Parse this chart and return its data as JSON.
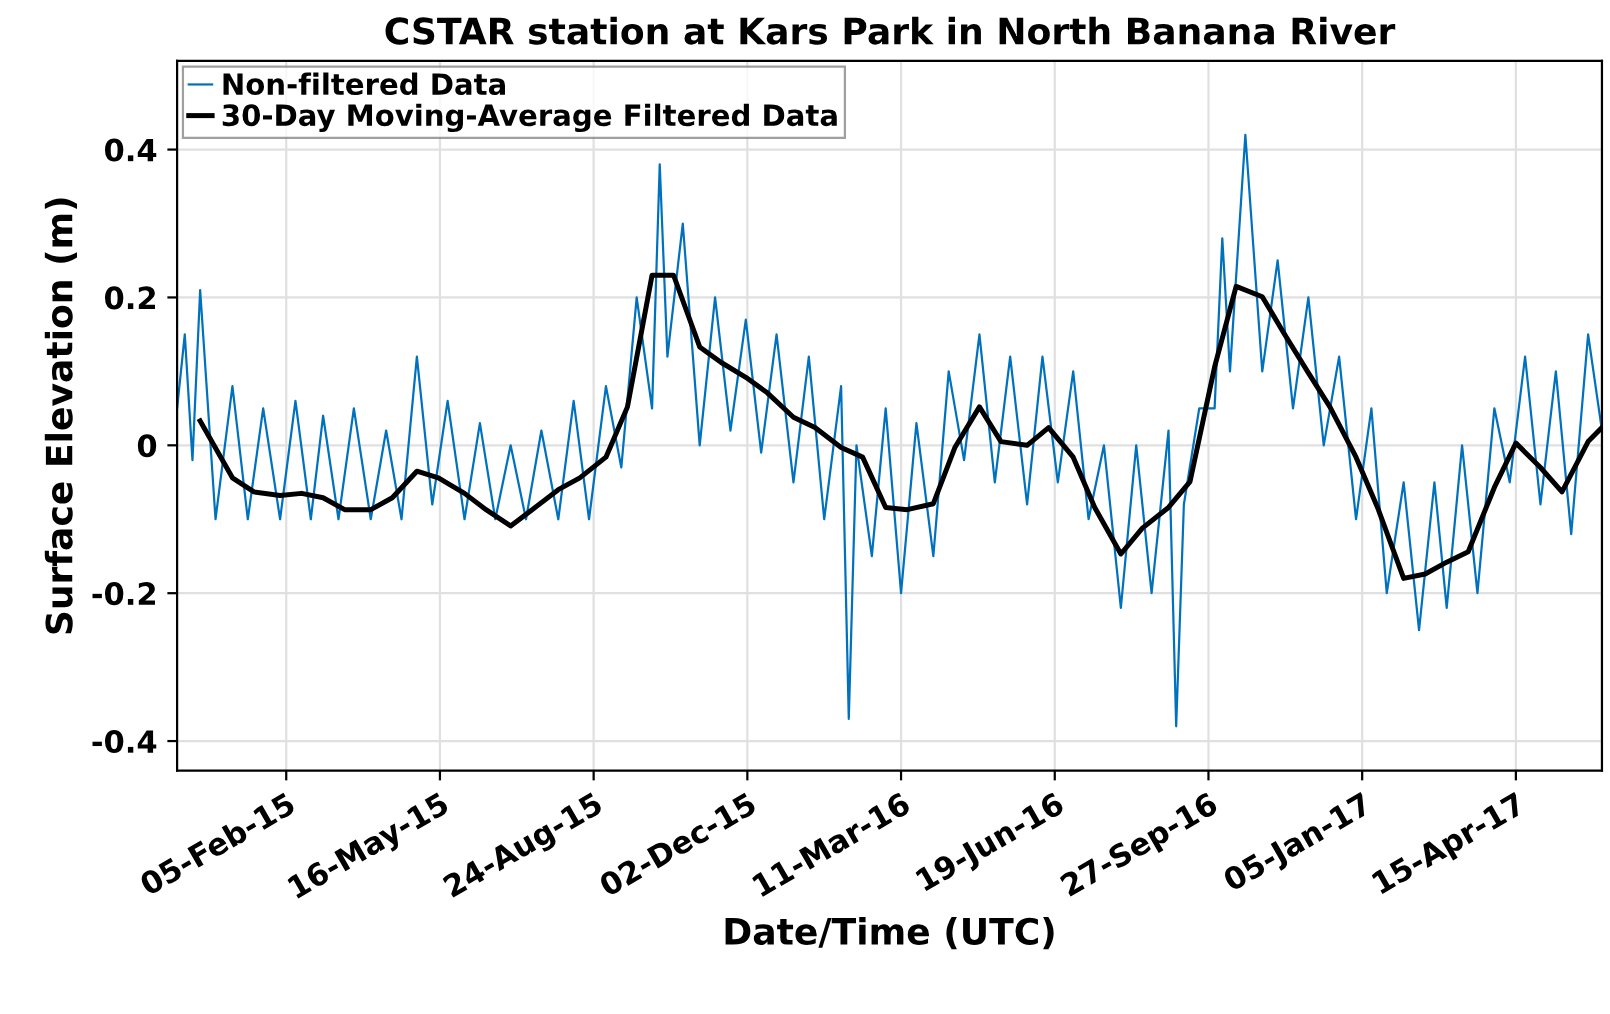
{
  "chart_data": {
    "type": "line",
    "title": "CSTAR station at Kars Park in North Banana River",
    "xlabel": "Date/Time (UTC)",
    "ylabel": "Surface Elevation (m)",
    "xlim": [
      "2014-11-26",
      "2017-06-10"
    ],
    "ylim": [
      -0.44,
      0.52
    ],
    "xticks": [
      {
        "value": "2015-02-05",
        "label": "05-Feb-15"
      },
      {
        "value": "2015-05-16",
        "label": "16-May-15"
      },
      {
        "value": "2015-08-24",
        "label": "24-Aug-15"
      },
      {
        "value": "2015-12-02",
        "label": "02-Dec-15"
      },
      {
        "value": "2016-03-11",
        "label": "11-Mar-16"
      },
      {
        "value": "2016-06-19",
        "label": "19-Jun-16"
      },
      {
        "value": "2016-09-27",
        "label": "27-Sep-16"
      },
      {
        "value": "2017-01-05",
        "label": "05-Jan-17"
      },
      {
        "value": "2017-04-15",
        "label": "15-Apr-17"
      }
    ],
    "yticks": [
      -0.4,
      -0.2,
      0,
      0.2,
      0.4
    ],
    "grid": true,
    "legend": "top left",
    "marker": "none",
    "line_style": "solid",
    "series": [
      {
        "name": "Non-filtered Data",
        "color": "#0072bd",
        "x": [
          "2014-11-26",
          "2014-12-01",
          "2014-12-06",
          "2014-12-11",
          "2014-12-21",
          "2015-01-01",
          "2015-01-11",
          "2015-01-21",
          "2015-02-01",
          "2015-02-11",
          "2015-02-21",
          "2015-03-01",
          "2015-03-11",
          "2015-03-21",
          "2015-04-01",
          "2015-04-11",
          "2015-04-21",
          "2015-05-01",
          "2015-05-11",
          "2015-05-21",
          "2015-06-01",
          "2015-06-11",
          "2015-06-21",
          "2015-07-01",
          "2015-07-11",
          "2015-07-21",
          "2015-08-01",
          "2015-08-11",
          "2015-08-21",
          "2015-09-01",
          "2015-09-11",
          "2015-09-21",
          "2015-10-01",
          "2015-10-06",
          "2015-10-11",
          "2015-10-21",
          "2015-11-01",
          "2015-11-11",
          "2015-11-21",
          "2015-12-01",
          "2015-12-11",
          "2015-12-21",
          "2016-01-01",
          "2016-01-11",
          "2016-01-21",
          "2016-02-01",
          "2016-02-06",
          "2016-02-11",
          "2016-02-21",
          "2016-03-01",
          "2016-03-11",
          "2016-03-21",
          "2016-04-01",
          "2016-04-11",
          "2016-04-21",
          "2016-05-01",
          "2016-05-11",
          "2016-05-21",
          "2016-06-01",
          "2016-06-11",
          "2016-06-21",
          "2016-07-01",
          "2016-07-11",
          "2016-07-21",
          "2016-08-01",
          "2016-08-11",
          "2016-08-21",
          "2016-09-01",
          "2016-09-06",
          "2016-09-11",
          "2016-09-21",
          "2016-10-01",
          "2016-10-06",
          "2016-10-11",
          "2016-10-21",
          "2016-11-01",
          "2016-11-11",
          "2016-11-21",
          "2016-12-01",
          "2016-12-11",
          "2016-12-21",
          "2017-01-01",
          "2017-01-11",
          "2017-01-21",
          "2017-02-01",
          "2017-02-11",
          "2017-02-21",
          "2017-03-01",
          "2017-03-11",
          "2017-03-21",
          "2017-04-01",
          "2017-04-11",
          "2017-04-21",
          "2017-05-01",
          "2017-05-11",
          "2017-05-21",
          "2017-06-01",
          "2017-06-10"
        ],
        "values": [
          0.05,
          0.15,
          -0.02,
          0.21,
          -0.1,
          0.08,
          -0.1,
          0.05,
          -0.1,
          0.06,
          -0.1,
          0.04,
          -0.1,
          0.05,
          -0.1,
          0.02,
          -0.1,
          0.12,
          -0.08,
          0.06,
          -0.1,
          0.03,
          -0.1,
          0.0,
          -0.1,
          0.02,
          -0.1,
          0.06,
          -0.1,
          0.08,
          -0.03,
          0.2,
          0.05,
          0.38,
          0.12,
          0.3,
          0.0,
          0.2,
          0.02,
          0.17,
          -0.01,
          0.15,
          -0.05,
          0.12,
          -0.1,
          0.08,
          -0.37,
          0.0,
          -0.15,
          0.05,
          -0.2,
          0.03,
          -0.15,
          0.1,
          -0.02,
          0.15,
          -0.05,
          0.12,
          -0.08,
          0.12,
          -0.05,
          0.1,
          -0.1,
          0.0,
          -0.22,
          0.0,
          -0.2,
          0.02,
          -0.38,
          -0.08,
          0.05,
          0.05,
          0.28,
          0.1,
          0.42,
          0.1,
          0.25,
          0.05,
          0.2,
          0.0,
          0.12,
          -0.1,
          0.05,
          -0.2,
          -0.05,
          -0.25,
          -0.05,
          -0.22,
          0.0,
          -0.2,
          0.05,
          -0.05,
          0.12,
          -0.08,
          0.1,
          -0.12,
          0.15,
          0.02
        ]
      },
      {
        "name": "30-Day Moving-Average Filtered Data",
        "color": "#000000",
        "x": [
          "2014-12-11",
          "2015-01-01",
          "2015-01-15",
          "2015-02-01",
          "2015-02-15",
          "2015-03-01",
          "2015-03-15",
          "2015-04-01",
          "2015-04-15",
          "2015-05-01",
          "2015-05-15",
          "2015-06-01",
          "2015-06-15",
          "2015-07-01",
          "2015-07-15",
          "2015-08-01",
          "2015-08-15",
          "2015-09-01",
          "2015-09-15",
          "2015-10-01",
          "2015-10-15",
          "2015-11-01",
          "2015-11-15",
          "2015-12-01",
          "2015-12-15",
          "2016-01-01",
          "2016-01-15",
          "2016-02-01",
          "2016-02-15",
          "2016-03-01",
          "2016-03-15",
          "2016-04-01",
          "2016-04-15",
          "2016-05-01",
          "2016-05-15",
          "2016-06-01",
          "2016-06-15",
          "2016-07-01",
          "2016-07-15",
          "2016-08-01",
          "2016-08-15",
          "2016-09-01",
          "2016-09-15",
          "2016-10-01",
          "2016-10-15",
          "2016-11-01",
          "2016-11-15",
          "2016-12-01",
          "2016-12-15",
          "2017-01-01",
          "2017-01-15",
          "2017-02-01",
          "2017-02-15",
          "2017-03-01",
          "2017-03-15",
          "2017-04-01",
          "2017-04-15",
          "2017-05-01",
          "2017-05-15",
          "2017-06-01",
          "2017-06-10"
        ],
        "values": [
          0.033,
          -0.044,
          -0.063,
          -0.068,
          -0.065,
          -0.071,
          -0.087,
          -0.087,
          -0.071,
          -0.035,
          -0.044,
          -0.065,
          -0.087,
          -0.109,
          -0.087,
          -0.06,
          -0.044,
          -0.016,
          0.052,
          0.23,
          0.23,
          0.133,
          0.112,
          0.092,
          0.071,
          0.038,
          0.024,
          -0.003,
          -0.016,
          -0.084,
          -0.087,
          -0.079,
          -0.003,
          0.052,
          0.005,
          0.0,
          0.024,
          -0.016,
          -0.084,
          -0.147,
          -0.112,
          -0.084,
          -0.049,
          0.106,
          0.215,
          0.201,
          0.152,
          0.098,
          0.052,
          -0.016,
          -0.084,
          -0.18,
          -0.174,
          -0.158,
          -0.144,
          -0.057,
          0.003,
          -0.03,
          -0.063,
          0.005,
          0.024
        ]
      }
    ]
  }
}
